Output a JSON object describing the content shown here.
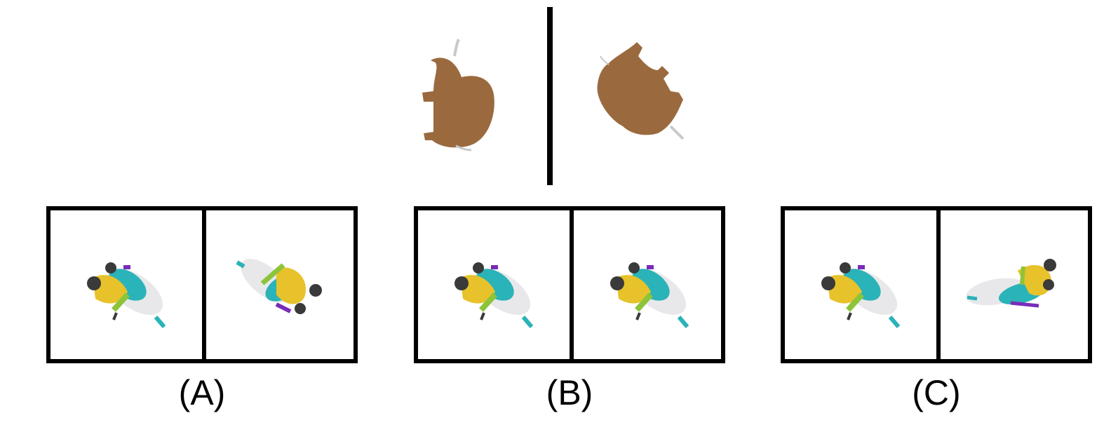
{
  "reference": {
    "left_view": "bison-top-view",
    "right_view": "bison-rotated-view",
    "color": "#9a6a3e"
  },
  "options": [
    {
      "id": "A",
      "label": "(A)"
    },
    {
      "id": "B",
      "label": "(B)"
    },
    {
      "id": "C",
      "label": "(C)"
    }
  ],
  "colors": {
    "border": "#000000",
    "figure_yellow": "#e7c22a",
    "figure_teal": "#2ab3b8",
    "figure_white": "#e8e8ea",
    "figure_dark": "#3a3a3a",
    "figure_purple": "#7a2bb8",
    "figure_green": "#8cc43a"
  }
}
